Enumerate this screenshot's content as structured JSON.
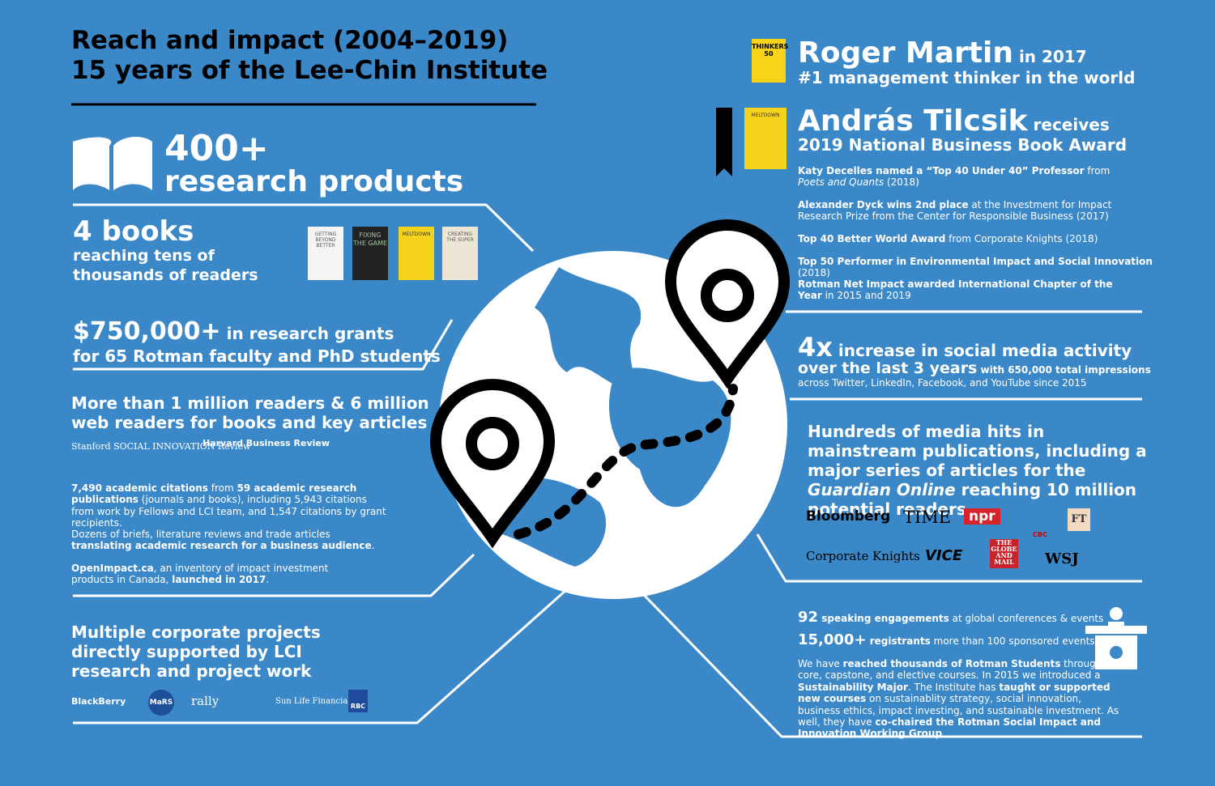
{
  "header": {
    "title_line1": "Reach and impact (2004–2019)",
    "title_line2": "15 years of the Lee-Chin Institute"
  },
  "left": {
    "research": {
      "number": "400+",
      "label": "research products"
    },
    "books": {
      "number": "4 books",
      "line1": "reaching tens of",
      "line2": "thousands of readers",
      "covers": [
        "GETTING BEYOND BETTER",
        "FIXING THE GAME",
        "MELTDOWN",
        "CREATING THE SUPER"
      ]
    },
    "grants": {
      "amount": "$750,000+",
      "line1": " in research grants",
      "line2": "for 65 Rotman faculty and PhD students"
    },
    "readers": {
      "line1": "More than 1 million readers & 6 million",
      "line2": "web readers for books and key articles",
      "logos": [
        "Stanford SOCIAL INNOVATION Review",
        "Harvard Business Review"
      ],
      "citations": [
        "7,490 academic citations",
        " from ",
        "59 academic research publications",
        " (journals and books), including 5,943 citations from work by Fellows and LCI team, and 1,547 citations by grant recipients."
      ],
      "briefs": [
        "Dozens of briefs, literature reviews and trade articles ",
        "translating academic research for a business audience",
        "."
      ],
      "openimpact": [
        "OpenImpact.ca",
        ", an inventory of impact investment products in Canada, ",
        "launched in 2017",
        "."
      ]
    },
    "corporate": {
      "lines": [
        "Multiple corporate projects",
        "directly supported by LCI",
        "research and project work"
      ],
      "logos": [
        "BlackBerry",
        "MaRS",
        "rally",
        "Sun Life Financial",
        "RBC"
      ]
    }
  },
  "right": {
    "martin": {
      "badge": "THINKERS 50",
      "name": "Roger Martin",
      "year": " in 2017",
      "line2": "#1 management thinker in the world"
    },
    "tilcsik": {
      "book": "MELTDOWN",
      "name": "András Tilcsik",
      "receives": " receives",
      "line2": "2019 National Business Book Award"
    },
    "awards": [
      [
        "Katy Decelles named a “Top 40 Under 40” Professor",
        " from ",
        "Poets and Quants",
        " (2018)"
      ],
      [
        "Alexander Dyck wins 2nd place",
        " at the Investment for Impact Research Prize from the Center for Responsible Business (2017)"
      ],
      [
        "Top 40 Better World Award",
        " from Corporate Knights (2018)"
      ],
      [
        "Top 50 Performer in Environmental Impact and Social Innovation",
        " (2018)"
      ],
      [
        "Rotman Net Impact awarded International Chapter of the Year",
        " in 2015 and 2019"
      ]
    ],
    "social": {
      "number": "4x",
      "text": " increase in social media activity",
      "line2": "over the last 3 years",
      "impressions": " with 650,000 total impressions",
      "line3": "across Twitter, LinkedIn, Facebook, and YouTube since 2015"
    },
    "media": {
      "text": [
        "Hundreds of media hits in mainstream publications, including a major series of articles for the ",
        "Guardian Online",
        " reaching 10 million potential readers"
      ],
      "logos": [
        "Bloomberg",
        "TIME",
        "npr",
        "CBC",
        "FT",
        "Corporate Knights",
        "VICE",
        "THE GLOBE AND MAIL",
        "WSJ"
      ]
    },
    "speaking": [
      "92",
      " speaking engagements",
      " at global conferences & events"
    ],
    "registrants": [
      "15,000+",
      " registrants",
      " more than 100 sponsored events"
    ],
    "students": [
      "We have ",
      "reached thousands of Rotman Students",
      " through core, capstone, and elective courses. In 2015 we introduced a ",
      "Sustainability Major",
      ". The Institute has ",
      "taught or supported new courses",
      " on sustainablity strategy, social innovation, business ethics, impact investing, and sustainable investment. As well, they have ",
      "co-chaired the Rotman Social Impact and Innovation Working Group",
      "."
    ]
  }
}
